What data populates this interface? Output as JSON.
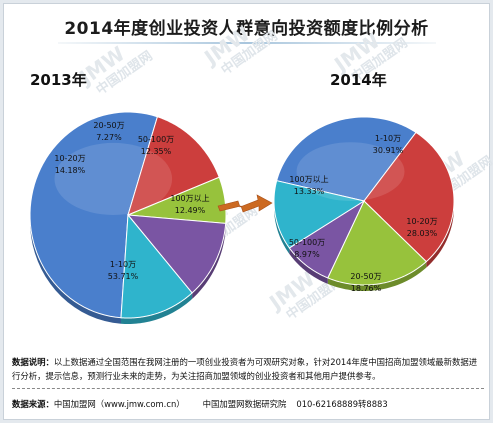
{
  "title": "2014年度创业投资人群意向投资额度比例分析",
  "chart_data": [
    {
      "type": "pie",
      "label": "2013年",
      "slices": [
        {
          "name": "1-10万",
          "value": 53.71,
          "pct": "53.71%",
          "color": "#4a7fcc"
        },
        {
          "name": "10-20万",
          "value": 14.18,
          "pct": "14.18%",
          "color": "#cc3e3d"
        },
        {
          "name": "20-50万",
          "value": 7.27,
          "pct": "7.27%",
          "color": "#97c23c"
        },
        {
          "name": "50-100万",
          "value": 12.35,
          "pct": "12.35%",
          "color": "#7a55a3"
        },
        {
          "name": "100万以上",
          "value": 12.49,
          "pct": "12.49%",
          "color": "#2fb4cc"
        }
      ]
    },
    {
      "type": "pie",
      "label": "2014年",
      "slices": [
        {
          "name": "1-10万",
          "value": 30.91,
          "pct": "30.91%",
          "color": "#4a7fcc"
        },
        {
          "name": "10-20万",
          "value": 28.03,
          "pct": "28.03%",
          "color": "#cc3e3d"
        },
        {
          "name": "20-50万",
          "value": 18.76,
          "pct": "18.76%",
          "color": "#97c23c"
        },
        {
          "name": "50-100万",
          "value": 8.97,
          "pct": "8.97%",
          "color": "#7a55a3"
        },
        {
          "name": "100万以上",
          "value": 13.33,
          "pct": "13.33%",
          "color": "#2fb4cc"
        }
      ]
    }
  ],
  "note": {
    "label": "数据说明：",
    "text": "以上数据通过全国范围在我网注册的一项创业投资者为可观研究对象，针对2014年度中国招商加盟领域最新数据进行分析，提示信息，预测行业未来的走势，为关注招商加盟领域的创业投资者和其他用户提供参考。"
  },
  "source": {
    "label": "数据来源：",
    "site": "中国加盟网（www.jmw.com.cn）",
    "institute": "中国加盟网数据研究院",
    "phone": "010-62168889转8883"
  },
  "watermark": {
    "text": "中国加盟网",
    "logo": "JMW"
  }
}
